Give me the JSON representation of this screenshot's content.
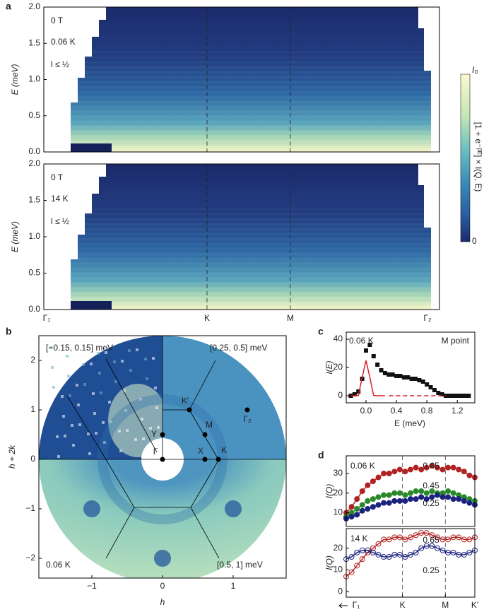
{
  "chart_data": [
    {
      "type": "heatmap",
      "panel_label": "a",
      "annotations": [
        "0 T",
        "0.06 K",
        "l ≤ ½"
      ],
      "y_label": "E (meV)",
      "ylim": [
        0,
        2
      ],
      "yticks": [
        {
          "value": 0,
          "label": "0.0"
        },
        {
          "value": 0.5,
          "label": "0.5"
        },
        {
          "value": 1,
          "label": "1.0"
        },
        {
          "value": 1.5,
          "label": "1.5"
        },
        {
          "value": 2,
          "label": "2.0"
        }
      ],
      "colorbar": {
        "max_label": "I₀",
        "min_label": "0",
        "label": "[1 + e⁻ᵝᴱ] × I(Q, E)"
      }
    },
    {
      "type": "heatmap",
      "annotations": [
        "0 T",
        "14 K",
        "l ≤ ½"
      ],
      "y_label": "E (meV)",
      "ylim": [
        0,
        2
      ],
      "yticks": [
        {
          "value": 0,
          "label": "0.0"
        },
        {
          "value": 0.5,
          "label": "0.5"
        },
        {
          "value": 1,
          "label": "1.0"
        },
        {
          "value": 1.5,
          "label": "1.5"
        },
        {
          "value": 2,
          "label": "2.0"
        }
      ],
      "categories": [
        "Γ₁",
        "K",
        "M",
        "Γ₂"
      ]
    },
    {
      "type": "map",
      "panel_label": "b",
      "annotations": [
        "[−0.15, 0.15] meV",
        "[0.25, 0.5] meV",
        "0.06 K",
        "[0.5, 1] meV"
      ],
      "point_labels": [
        "Γ",
        "Y",
        "X",
        "K",
        "M",
        "K′",
        "Γ₂"
      ],
      "x_label": "h",
      "y_label": "h + 2k",
      "xlim": [
        -1.75,
        1.75
      ],
      "ylim": [
        -2.4,
        2.5
      ],
      "xticks": [
        {
          "value": -1,
          "label": "−1"
        },
        0,
        1
      ],
      "yticks": [
        {
          "value": -2,
          "label": "−2"
        },
        {
          "value": -1,
          "label": "−1"
        },
        0,
        1,
        2
      ]
    },
    {
      "type": "line",
      "panel_label": "c",
      "annotations": [
        "0.06 K",
        "M point"
      ],
      "x_label": "E (meV)",
      "y_label": "I(E)",
      "xlim": [
        -0.26,
        1.43
      ],
      "ylim": [
        -5,
        45
      ],
      "xticks": [
        {
          "value": 0,
          "label": "0.0"
        },
        0.4,
        0.8,
        1.2
      ],
      "yticks": [
        0,
        20,
        40
      ],
      "x": [
        -0.2,
        -0.15,
        -0.1,
        -0.05,
        0,
        0.05,
        0.1,
        0.15,
        0.2,
        0.25,
        0.3,
        0.35,
        0.4,
        0.45,
        0.5,
        0.55,
        0.6,
        0.65,
        0.7,
        0.75,
        0.8,
        0.85,
        0.9,
        0.95,
        1,
        1.05,
        1.1,
        1.15,
        1.2,
        1.25,
        1.3,
        1.35
      ],
      "series": [
        {
          "color": "#111111",
          "marker": "square",
          "values": [
            0,
            1,
            3,
            12,
            32,
            36,
            28,
            22,
            18,
            16,
            15,
            15,
            14,
            14,
            13,
            13,
            12,
            12,
            11,
            10,
            8,
            6,
            4,
            2,
            1,
            0,
            0,
            0,
            0,
            0,
            0,
            0
          ]
        },
        {
          "color": "#d62020",
          "style": "solid",
          "values": [
            0,
            0,
            0.2,
            13,
            25,
            13,
            0.2,
            0,
            0,
            0,
            null,
            null,
            null,
            null,
            null,
            null,
            null,
            null,
            null,
            null,
            null,
            null,
            null,
            null,
            null,
            null,
            null,
            null,
            null,
            null,
            null,
            null
          ]
        },
        {
          "color": "#d62020",
          "style": "dashed",
          "values": [
            null,
            null,
            null,
            null,
            null,
            null,
            null,
            null,
            null,
            null,
            0,
            0,
            0,
            0,
            0,
            0,
            0,
            0,
            0,
            0,
            0,
            0,
            0,
            0,
            0,
            0,
            null,
            null,
            null,
            null,
            null,
            null
          ]
        }
      ]
    },
    {
      "type": "line",
      "panel_label": "d",
      "annotations": [
        "0.06 K"
      ],
      "y_label": "I(Q)",
      "xlim": [
        0,
        24
      ],
      "ylim": [
        3,
        39
      ],
      "yticks": [
        10,
        20,
        30
      ],
      "marker": "filled",
      "series": [
        {
          "name": "0.65",
          "color": "#b22222",
          "values": [
            10,
            13,
            17,
            21,
            24,
            26,
            28,
            30,
            30,
            31,
            32,
            31,
            32,
            33,
            32,
            33,
            34,
            33,
            32,
            33,
            33,
            32,
            31,
            29,
            28
          ]
        },
        {
          "name": "0.45",
          "color": "#2a8a2a",
          "values": [
            8,
            10,
            12,
            14,
            16,
            17,
            18,
            19,
            19,
            20,
            20,
            19,
            20,
            21,
            21,
            20,
            21,
            20,
            20,
            21,
            20,
            19,
            18,
            17,
            16
          ]
        },
        {
          "name": "0.25",
          "color": "#1a237e",
          "values": [
            7,
            8,
            9,
            11,
            12,
            13,
            14,
            15,
            15,
            16,
            16,
            16,
            17,
            17,
            18,
            17,
            18,
            19,
            18,
            18,
            17,
            17,
            16,
            15,
            14
          ]
        }
      ]
    },
    {
      "type": "line",
      "annotations": [
        "14 K"
      ],
      "y_label": "I(Q)",
      "xlim": [
        0,
        24
      ],
      "ylim": [
        -2.5,
        29
      ],
      "yticks": [
        0,
        10,
        20
      ],
      "marker": "open",
      "xticks": [
        {
          "value": 0,
          "label": "Γ₁"
        },
        {
          "value": 10.5,
          "label": "K"
        },
        {
          "value": 18.5,
          "label": "M"
        },
        {
          "value": 24,
          "label": "K′"
        }
      ],
      "series": [
        {
          "name": "0.65",
          "color": "#b22222",
          "values": [
            7,
            9,
            12,
            15,
            18,
            20,
            22,
            24,
            24,
            25,
            25,
            24,
            25,
            26,
            27,
            27,
            26,
            25,
            24,
            24,
            25,
            25,
            24,
            24,
            25
          ]
        },
        {
          "name": "0.25",
          "color": "#1a237e",
          "values": [
            15,
            16,
            18,
            19,
            19,
            18,
            17,
            16,
            16,
            17,
            17,
            16,
            17,
            18,
            20,
            21,
            21,
            20,
            19,
            18,
            18,
            17,
            17,
            18,
            19
          ]
        }
      ]
    }
  ]
}
